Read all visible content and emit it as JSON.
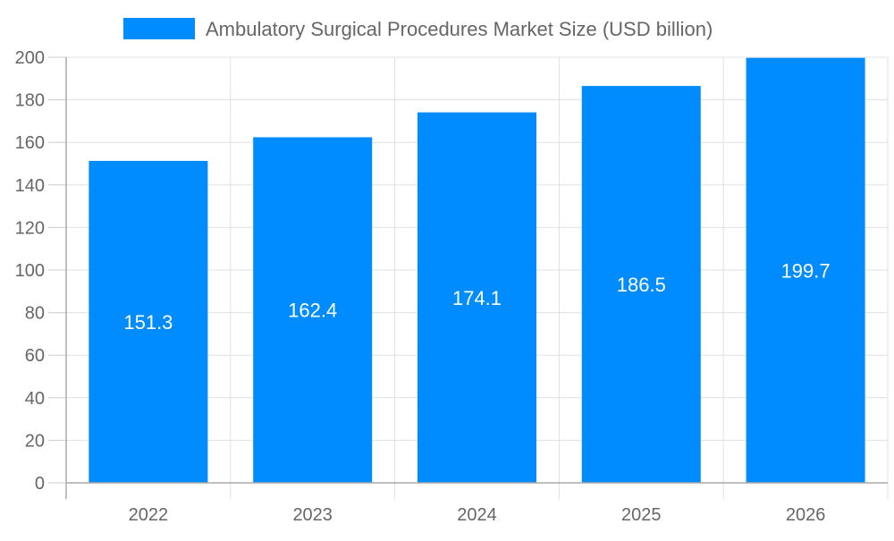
{
  "chart_data": {
    "type": "bar",
    "title": "",
    "xlabel": "",
    "ylabel": "",
    "legend": {
      "position": "top",
      "entries": [
        "Ambulatory Surgical Procedures Market Size (USD billion)"
      ]
    },
    "categories": [
      "2022",
      "2023",
      "2024",
      "2025",
      "2026"
    ],
    "series": [
      {
        "name": "Ambulatory Surgical Procedures Market Size (USD billion)",
        "values": [
          151.3,
          162.4,
          174.1,
          186.5,
          199.7
        ],
        "color": "#008CFF"
      }
    ],
    "data_labels": [
      "151.3",
      "162.4",
      "174.1",
      "186.5",
      "199.7"
    ],
    "ylim": [
      0,
      200
    ],
    "yticks": [
      0,
      20,
      40,
      60,
      80,
      100,
      120,
      140,
      160,
      180,
      200
    ],
    "grid": true
  }
}
